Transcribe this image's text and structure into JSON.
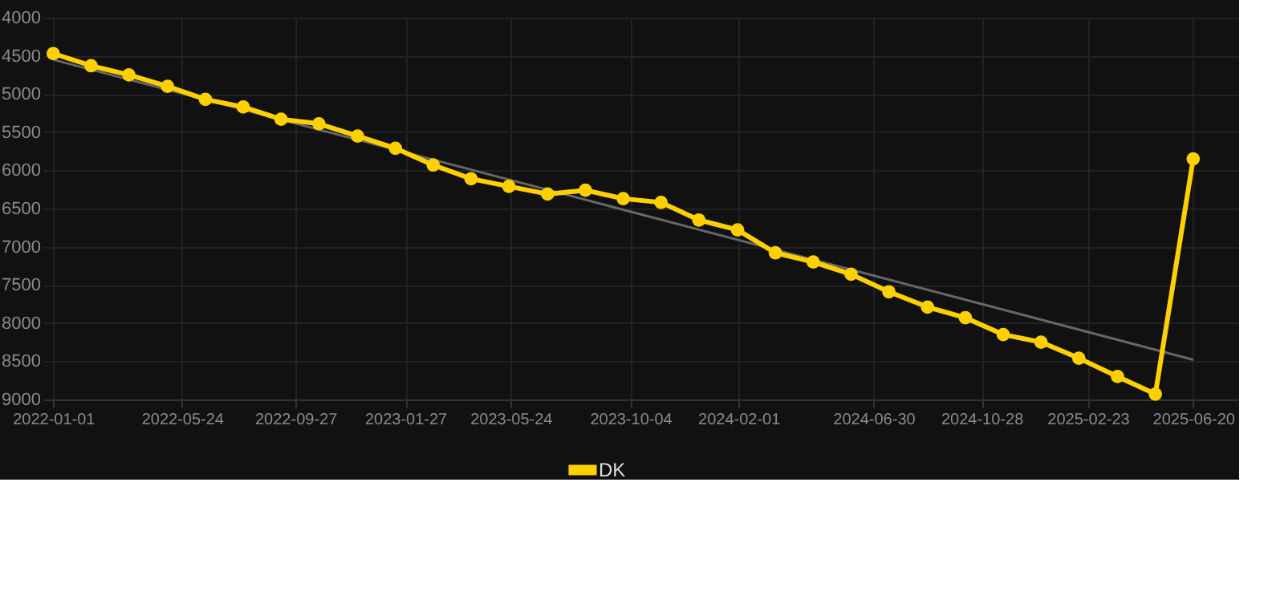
{
  "chart_data": {
    "type": "line",
    "x": [
      "2022-01-01",
      "2022-02-12",
      "2022-03-26",
      "2022-05-08",
      "2022-06-19",
      "2022-07-31",
      "2022-09-11",
      "2022-10-23",
      "2022-12-05",
      "2023-01-16",
      "2023-02-27",
      "2023-04-10",
      "2023-05-22",
      "2023-07-04",
      "2023-08-15",
      "2023-09-26",
      "2023-11-07",
      "2023-12-19",
      "2024-01-31",
      "2024-03-13",
      "2024-04-24",
      "2024-06-05",
      "2024-07-17",
      "2024-08-29",
      "2024-10-10",
      "2024-11-21",
      "2025-01-02",
      "2025-02-13",
      "2025-03-28",
      "2025-05-09",
      "2025-06-20"
    ],
    "series": [
      {
        "name": "DK",
        "color": "#ffd000",
        "marker": "circle",
        "values": [
          4470,
          4630,
          4750,
          4900,
          5070,
          5170,
          5330,
          5390,
          5550,
          5710,
          5930,
          6110,
          6210,
          6310,
          6260,
          6370,
          6420,
          6650,
          6780,
          7080,
          7200,
          7360,
          7590,
          7790,
          7930,
          8150,
          8250,
          8460,
          8700,
          8930,
          5850
        ]
      },
      {
        "type": "line",
        "color": "#666666",
        "marker": "none",
        "x": [
          "2022-01-01",
          "2025-06-20"
        ],
        "values": [
          4550,
          8480
        ]
      }
    ],
    "ylim": [
      9000,
      4000
    ],
    "yticks": [
      4000,
      4500,
      5000,
      5500,
      6000,
      6500,
      7000,
      7500,
      8000,
      8500,
      9000
    ],
    "xlim": [
      "2021-12-21",
      "2025-08-10"
    ],
    "xticks": [
      "2022-01-01",
      "2022-05-24",
      "2022-09-27",
      "2023-01-27",
      "2023-05-24",
      "2023-10-04",
      "2024-02-01",
      "2024-06-30",
      "2024-10-28",
      "2025-02-23",
      "2025-06-20"
    ],
    "grid": true,
    "legend": "bottom"
  }
}
